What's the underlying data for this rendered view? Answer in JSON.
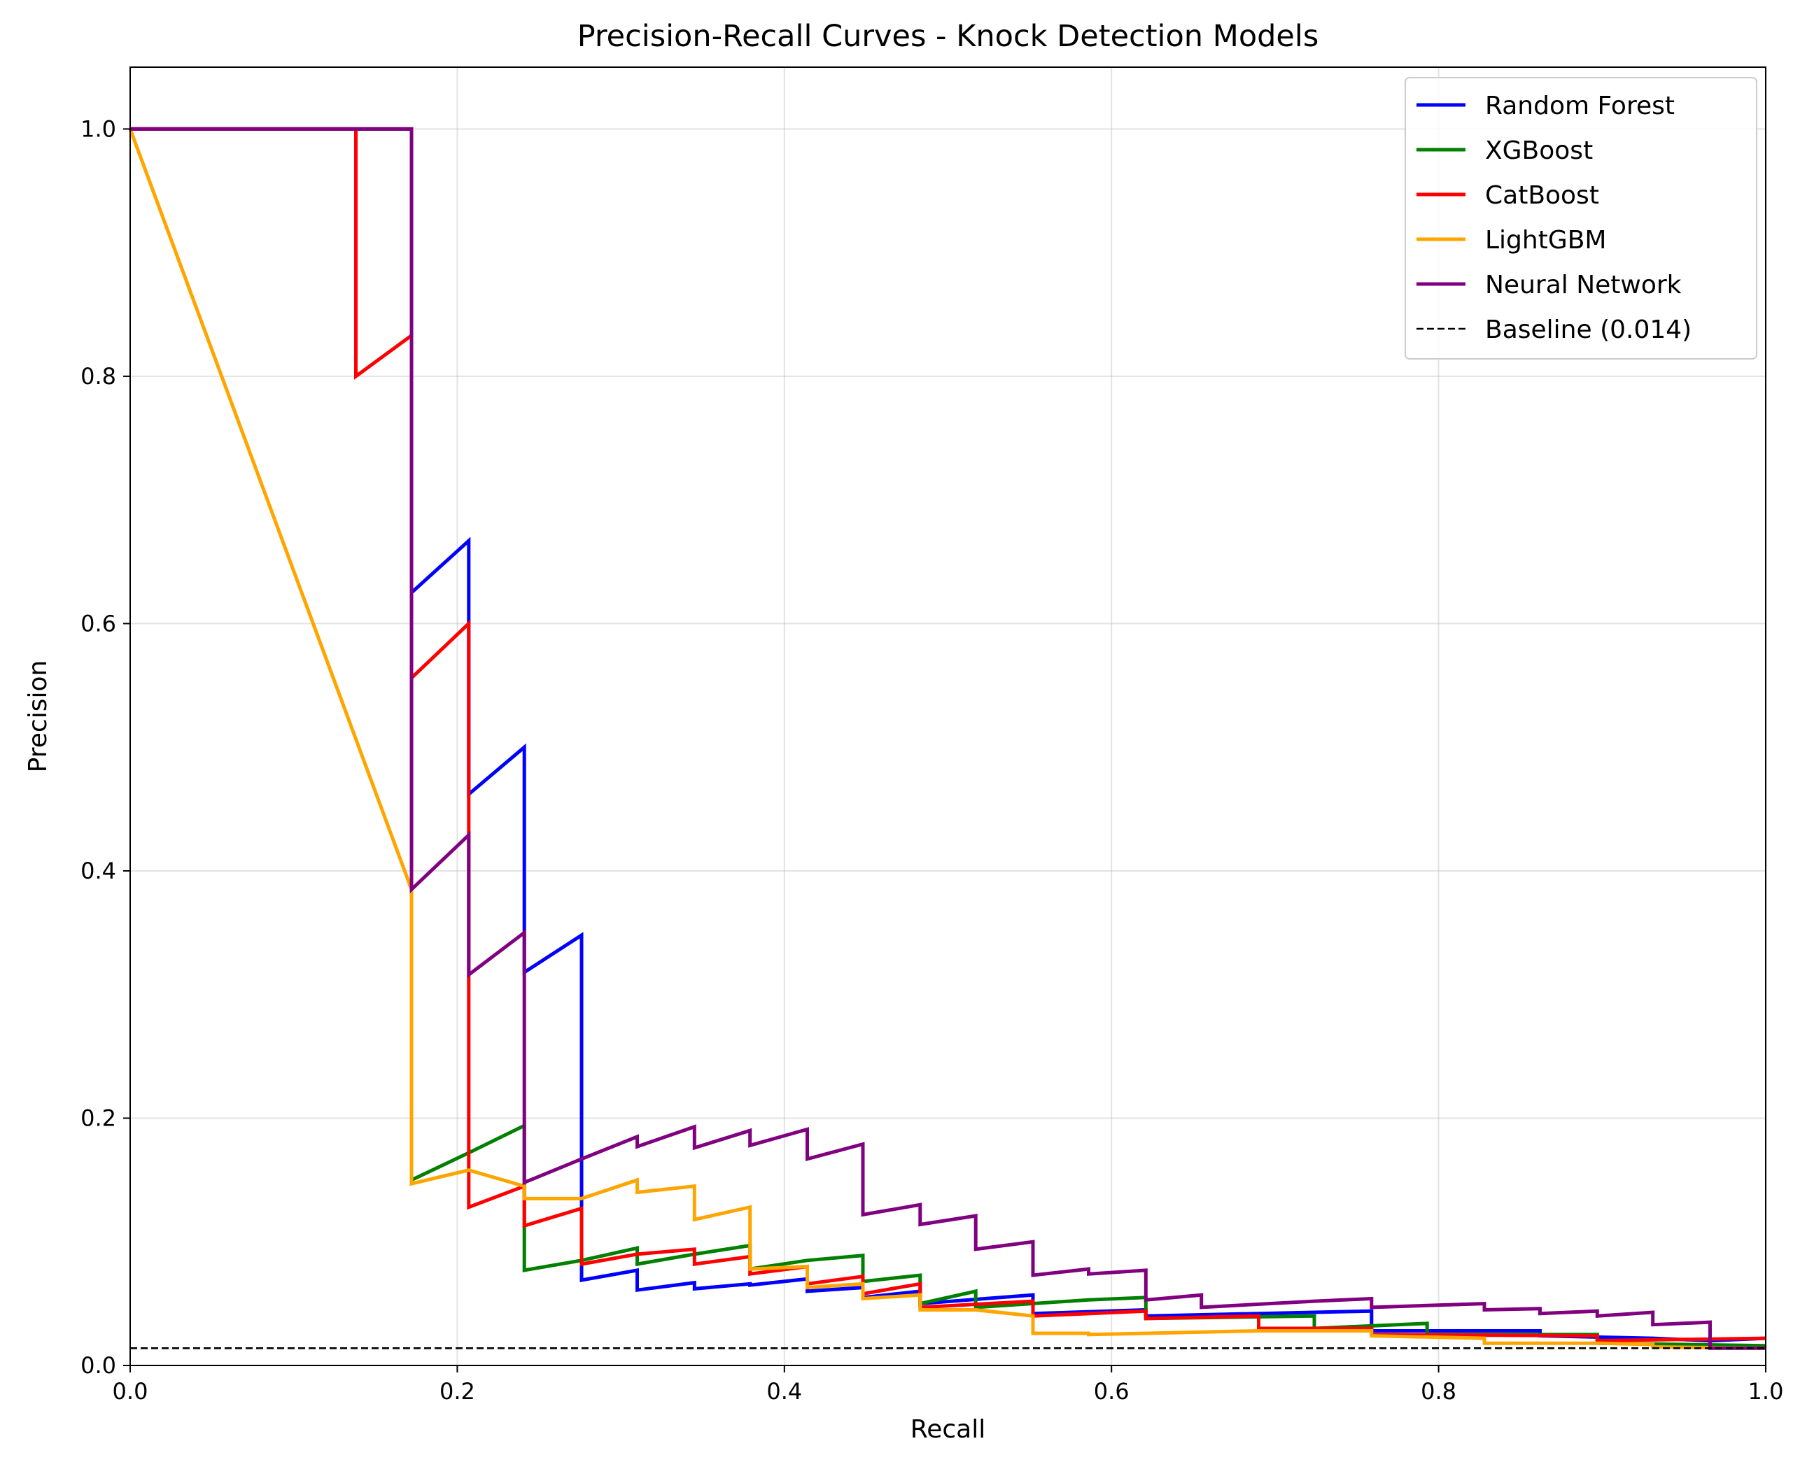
{
  "chart_data": {
    "type": "line",
    "title": "Precision-Recall Curves - Knock Detection Models",
    "xlabel": "Recall",
    "ylabel": "Precision",
    "xlim": [
      0,
      1
    ],
    "ylim": [
      0,
      1.05
    ],
    "xticks": [
      "0.0",
      "0.2",
      "0.4",
      "0.6",
      "0.8",
      "1.0"
    ],
    "yticks": [
      "0.0",
      "0.2",
      "0.4",
      "0.6",
      "0.8",
      "1.0"
    ],
    "grid": true,
    "legend_position": "top-right",
    "series": [
      {
        "name": "Random Forest",
        "color": "#0000ff",
        "style": "solid",
        "points": [
          [
            0,
            1.0
          ],
          [
            0.172,
            1.0
          ],
          [
            0.172,
            0.625
          ],
          [
            0.207,
            0.667
          ],
          [
            0.207,
            0.462
          ],
          [
            0.241,
            0.5
          ],
          [
            0.241,
            0.318
          ],
          [
            0.276,
            0.348
          ],
          [
            0.276,
            0.069
          ],
          [
            0.31,
            0.077
          ],
          [
            0.31,
            0.061
          ],
          [
            0.345,
            0.067
          ],
          [
            0.345,
            0.062
          ],
          [
            0.379,
            0.066
          ],
          [
            0.379,
            0.065
          ],
          [
            0.414,
            0.07
          ],
          [
            0.414,
            0.06
          ],
          [
            0.448,
            0.063
          ],
          [
            0.448,
            0.055
          ],
          [
            0.483,
            0.06
          ],
          [
            0.483,
            0.05
          ],
          [
            0.552,
            0.057
          ],
          [
            0.552,
            0.042
          ],
          [
            0.621,
            0.045
          ],
          [
            0.621,
            0.04
          ],
          [
            0.759,
            0.044
          ],
          [
            0.759,
            0.028
          ],
          [
            0.862,
            0.028
          ],
          [
            0.862,
            0.024
          ],
          [
            0.931,
            0.022
          ],
          [
            0.966,
            0.02
          ],
          [
            1.0,
            0.022
          ]
        ]
      },
      {
        "name": "XGBoost",
        "color": "#008000",
        "style": "solid",
        "points": [
          [
            0,
            1.0
          ],
          [
            0.172,
            1.0
          ],
          [
            0.172,
            0.15
          ],
          [
            0.207,
            0.172
          ],
          [
            0.241,
            0.194
          ],
          [
            0.241,
            0.077
          ],
          [
            0.276,
            0.085
          ],
          [
            0.31,
            0.095
          ],
          [
            0.31,
            0.082
          ],
          [
            0.345,
            0.09
          ],
          [
            0.379,
            0.097
          ],
          [
            0.379,
            0.078
          ],
          [
            0.414,
            0.085
          ],
          [
            0.448,
            0.089
          ],
          [
            0.448,
            0.068
          ],
          [
            0.483,
            0.073
          ],
          [
            0.483,
            0.05
          ],
          [
            0.517,
            0.06
          ],
          [
            0.517,
            0.047
          ],
          [
            0.586,
            0.053
          ],
          [
            0.621,
            0.055
          ],
          [
            0.621,
            0.038
          ],
          [
            0.724,
            0.04
          ],
          [
            0.724,
            0.03
          ],
          [
            0.793,
            0.034
          ],
          [
            0.793,
            0.025
          ],
          [
            0.897,
            0.025
          ],
          [
            0.897,
            0.018
          ],
          [
            1.0,
            0.016
          ]
        ]
      },
      {
        "name": "CatBoost",
        "color": "#ff0000",
        "style": "solid",
        "points": [
          [
            0,
            1.0
          ],
          [
            0.138,
            1.0
          ],
          [
            0.138,
            0.8
          ],
          [
            0.172,
            0.833
          ],
          [
            0.172,
            0.556
          ],
          [
            0.207,
            0.6
          ],
          [
            0.207,
            0.128
          ],
          [
            0.241,
            0.145
          ],
          [
            0.241,
            0.113
          ],
          [
            0.276,
            0.127
          ],
          [
            0.276,
            0.082
          ],
          [
            0.31,
            0.09
          ],
          [
            0.345,
            0.094
          ],
          [
            0.345,
            0.082
          ],
          [
            0.379,
            0.088
          ],
          [
            0.379,
            0.074
          ],
          [
            0.414,
            0.08
          ],
          [
            0.414,
            0.066
          ],
          [
            0.448,
            0.072
          ],
          [
            0.448,
            0.058
          ],
          [
            0.483,
            0.066
          ],
          [
            0.483,
            0.047
          ],
          [
            0.552,
            0.052
          ],
          [
            0.552,
            0.04
          ],
          [
            0.621,
            0.044
          ],
          [
            0.621,
            0.038
          ],
          [
            0.69,
            0.04
          ],
          [
            0.69,
            0.03
          ],
          [
            0.759,
            0.03
          ],
          [
            0.759,
            0.025
          ],
          [
            0.897,
            0.024
          ],
          [
            0.897,
            0.02
          ],
          [
            1.0,
            0.022
          ]
        ]
      },
      {
        "name": "LightGBM",
        "color": "#ffa500",
        "style": "solid",
        "points": [
          [
            0,
            1.0
          ],
          [
            0.172,
            0.385
          ],
          [
            0.172,
            0.147
          ],
          [
            0.207,
            0.158
          ],
          [
            0.241,
            0.145
          ],
          [
            0.241,
            0.135
          ],
          [
            0.276,
            0.135
          ],
          [
            0.31,
            0.15
          ],
          [
            0.31,
            0.14
          ],
          [
            0.345,
            0.145
          ],
          [
            0.345,
            0.118
          ],
          [
            0.379,
            0.128
          ],
          [
            0.379,
            0.078
          ],
          [
            0.414,
            0.08
          ],
          [
            0.414,
            0.063
          ],
          [
            0.448,
            0.066
          ],
          [
            0.448,
            0.054
          ],
          [
            0.483,
            0.057
          ],
          [
            0.483,
            0.045
          ],
          [
            0.517,
            0.045
          ],
          [
            0.552,
            0.04
          ],
          [
            0.552,
            0.026
          ],
          [
            0.586,
            0.026
          ],
          [
            0.586,
            0.025
          ],
          [
            0.69,
            0.028
          ],
          [
            0.759,
            0.028
          ],
          [
            0.759,
            0.024
          ],
          [
            0.828,
            0.022
          ],
          [
            0.828,
            0.018
          ],
          [
            0.897,
            0.018
          ],
          [
            0.931,
            0.017
          ],
          [
            0.931,
            0.015
          ],
          [
            1.0,
            0.014
          ]
        ]
      },
      {
        "name": "Neural Network",
        "color": "#800080",
        "style": "solid",
        "points": [
          [
            0,
            1.0
          ],
          [
            0.172,
            1.0
          ],
          [
            0.172,
            0.385
          ],
          [
            0.207,
            0.429
          ],
          [
            0.207,
            0.316
          ],
          [
            0.241,
            0.35
          ],
          [
            0.241,
            0.148
          ],
          [
            0.276,
            0.167
          ],
          [
            0.31,
            0.185
          ],
          [
            0.31,
            0.177
          ],
          [
            0.345,
            0.193
          ],
          [
            0.345,
            0.176
          ],
          [
            0.379,
            0.19
          ],
          [
            0.379,
            0.178
          ],
          [
            0.414,
            0.191
          ],
          [
            0.414,
            0.167
          ],
          [
            0.448,
            0.179
          ],
          [
            0.448,
            0.122
          ],
          [
            0.483,
            0.13
          ],
          [
            0.483,
            0.114
          ],
          [
            0.517,
            0.121
          ],
          [
            0.517,
            0.094
          ],
          [
            0.552,
            0.1
          ],
          [
            0.552,
            0.073
          ],
          [
            0.586,
            0.078
          ],
          [
            0.586,
            0.074
          ],
          [
            0.621,
            0.077
          ],
          [
            0.621,
            0.053
          ],
          [
            0.655,
            0.057
          ],
          [
            0.655,
            0.047
          ],
          [
            0.724,
            0.052
          ],
          [
            0.759,
            0.054
          ],
          [
            0.759,
            0.047
          ],
          [
            0.828,
            0.05
          ],
          [
            0.828,
            0.045
          ],
          [
            0.862,
            0.046
          ],
          [
            0.862,
            0.042
          ],
          [
            0.897,
            0.044
          ],
          [
            0.897,
            0.04
          ],
          [
            0.931,
            0.043
          ],
          [
            0.931,
            0.033
          ],
          [
            0.966,
            0.035
          ],
          [
            0.966,
            0.014
          ],
          [
            1.0,
            0.014
          ]
        ]
      },
      {
        "name": "Baseline (0.014)",
        "color": "#000000",
        "style": "dashed",
        "points": [
          [
            0,
            0.014
          ],
          [
            1.0,
            0.014
          ]
        ]
      }
    ]
  }
}
